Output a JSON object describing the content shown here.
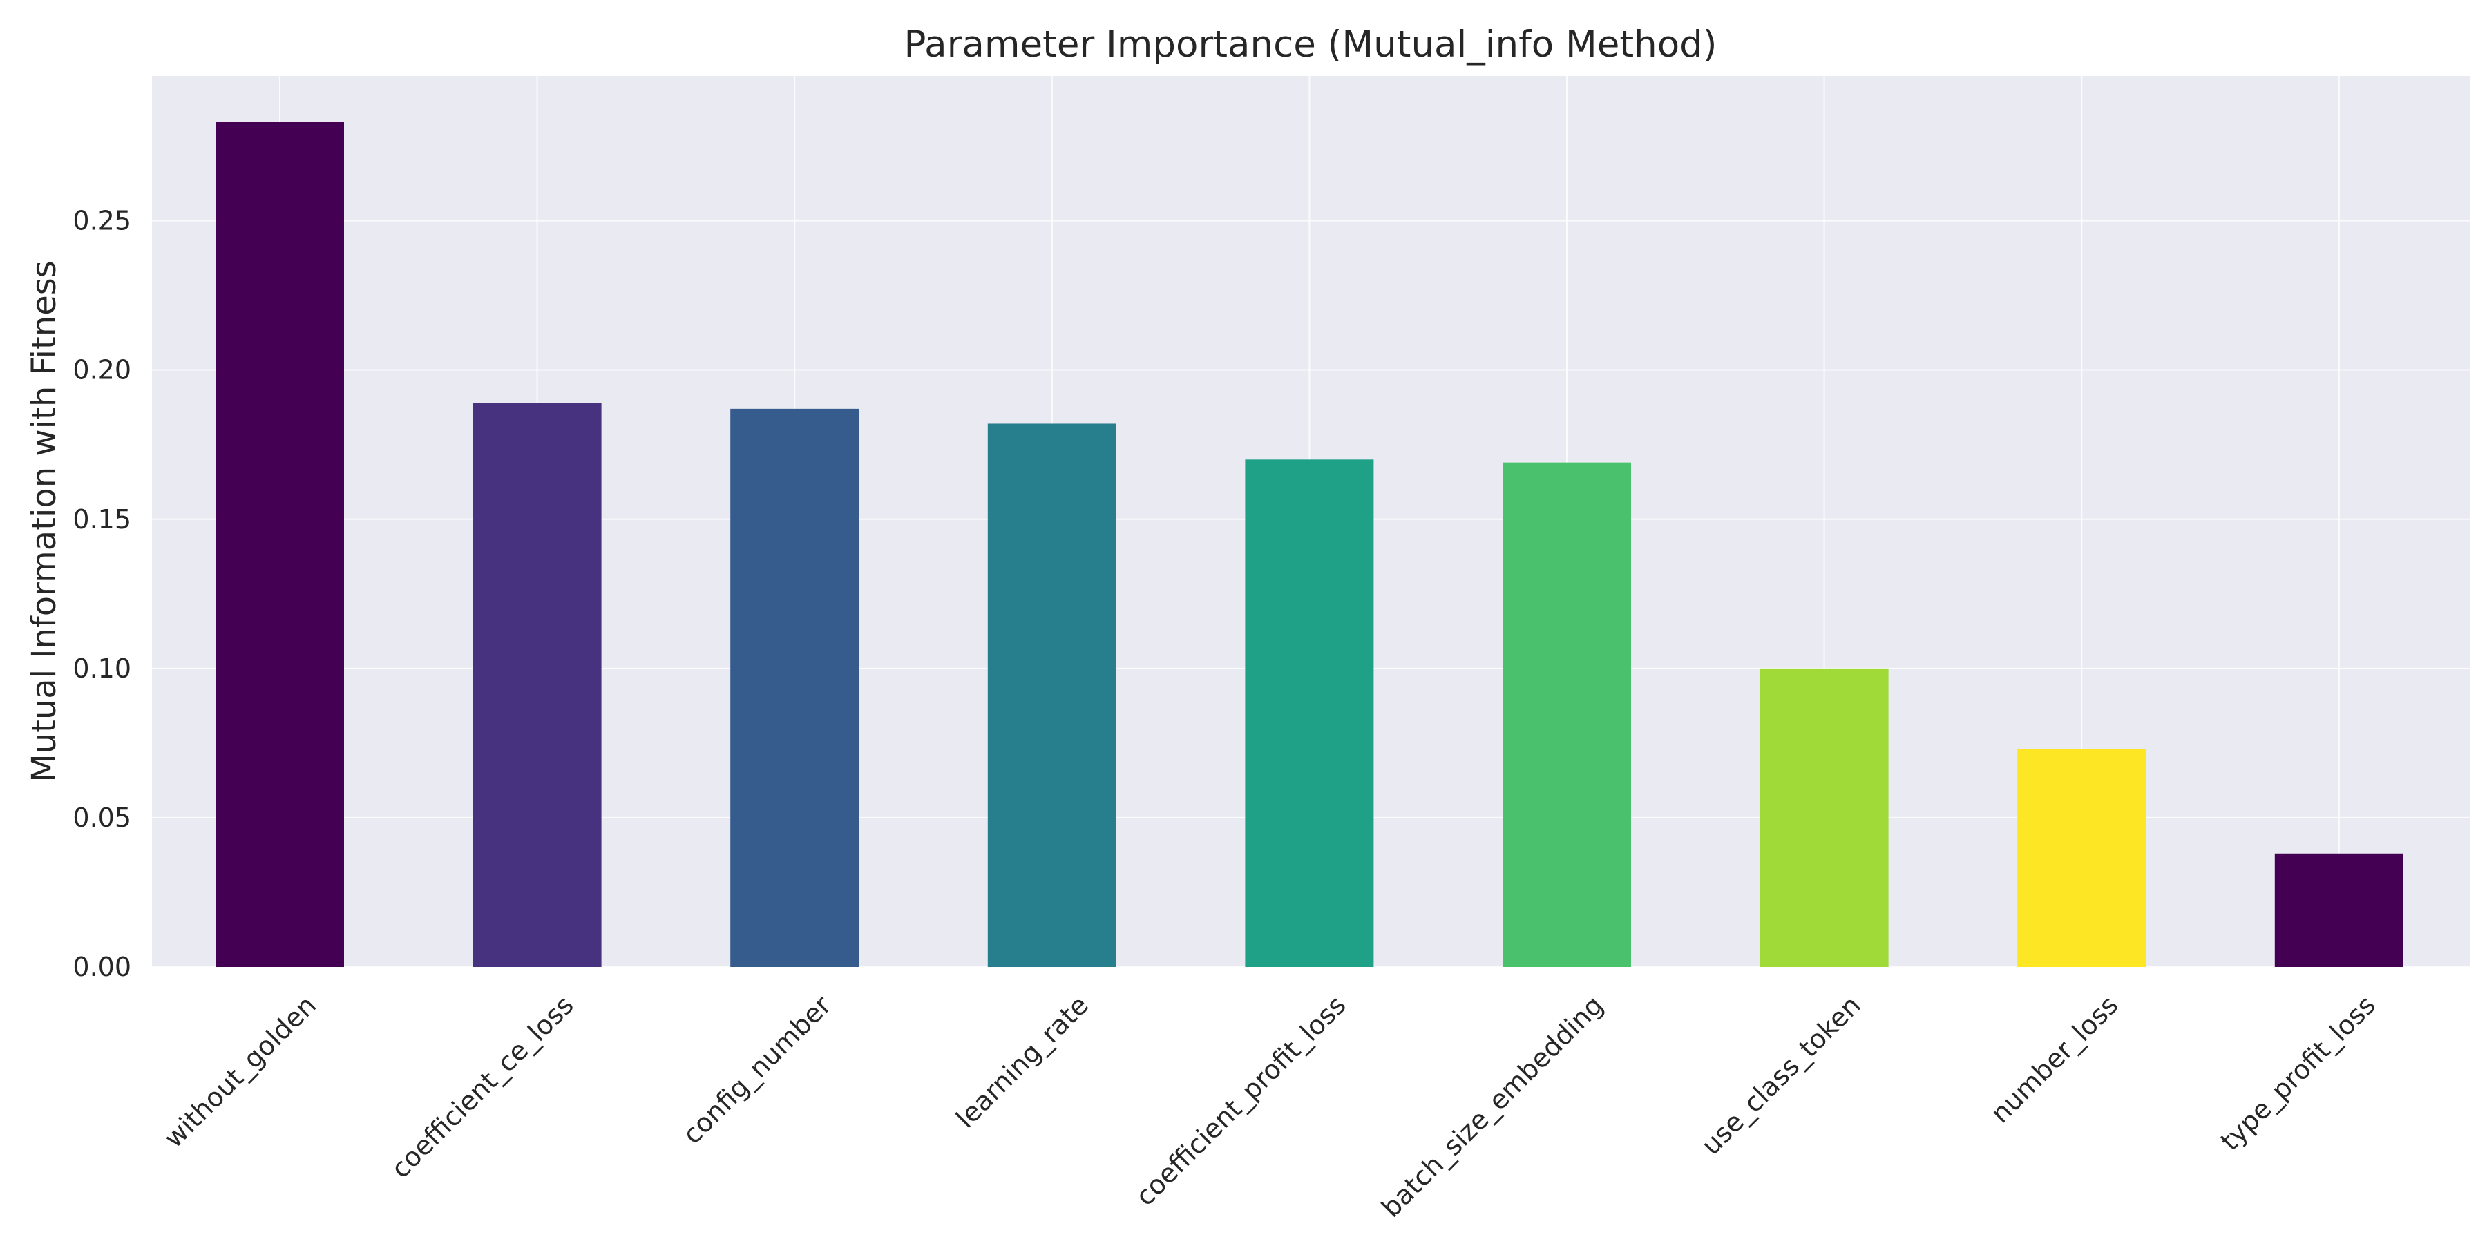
{
  "chart_data": {
    "type": "bar",
    "title": "Parameter Importance (Mutual_info Method)",
    "xlabel": "",
    "ylabel": "Mutual Information with Fitness",
    "categories": [
      "without_golden",
      "coefficient_ce_loss",
      "config_number",
      "learning_rate",
      "coefficient_profit_loss",
      "batch_size_embedding",
      "use_class_token",
      "number_loss",
      "type_profit_loss"
    ],
    "values": [
      0.283,
      0.189,
      0.187,
      0.182,
      0.17,
      0.169,
      0.1,
      0.073,
      0.038
    ],
    "bar_colors": [
      "#440154",
      "#46327e",
      "#365c8d",
      "#277f8e",
      "#1fa187",
      "#4ac16d",
      "#a0da39",
      "#fde725",
      "#440154"
    ],
    "ylim": [
      0,
      0.2985
    ],
    "yticks": [
      0.0,
      0.05,
      0.1,
      0.15,
      0.2,
      0.25
    ],
    "ytick_labels": [
      "0.00",
      "0.05",
      "0.10",
      "0.15",
      "0.20",
      "0.25"
    ],
    "grid": true,
    "background": "#eaeaf2",
    "grid_color": "#ffffff"
  }
}
